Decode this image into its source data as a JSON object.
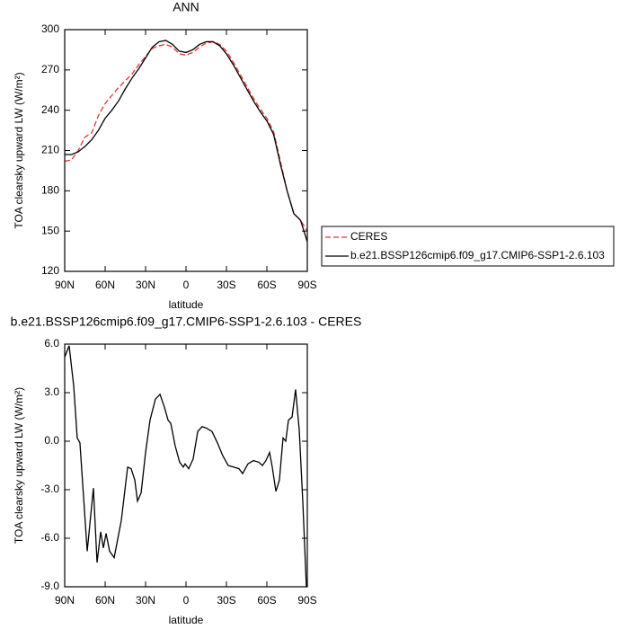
{
  "chart_data": [
    {
      "type": "line",
      "title": "ANN",
      "xlabel": "latitude",
      "ylabel": "TOA clearsky upward LW (W/m²)",
      "x": [
        90,
        85,
        80,
        75,
        70,
        65,
        60,
        55,
        50,
        45,
        40,
        35,
        30,
        25,
        20,
        15,
        10,
        5,
        0,
        -5,
        -10,
        -15,
        -20,
        -25,
        -30,
        -35,
        -40,
        -45,
        -50,
        -55,
        -60,
        -65,
        -70,
        -75,
        -80,
        -85,
        -90
      ],
      "series": [
        {
          "name": "CERES",
          "color": "#e8322c",
          "dashed": true,
          "values": [
            202,
            203,
            210,
            220,
            223,
            236,
            245,
            251,
            257,
            262,
            267,
            274,
            280,
            286,
            288,
            289,
            287,
            282,
            281,
            283,
            287,
            290,
            291,
            289,
            284,
            276,
            267,
            258,
            249,
            241,
            234,
            224,
            202,
            180,
            163,
            158,
            150
          ]
        },
        {
          "name": "b.e21.BSSP126cmip6.f09_g17.CMIP6-SSP1-2.6.103",
          "color": "#000000",
          "values": [
            207,
            207,
            209,
            213,
            218,
            225,
            234,
            240,
            247,
            256,
            264,
            271,
            279,
            287,
            291,
            292,
            289,
            284,
            283,
            285,
            289,
            291,
            291,
            288,
            282,
            274,
            265,
            256,
            247,
            239,
            232,
            222,
            200,
            180,
            163,
            158,
            142
          ]
        }
      ],
      "xlim": [
        90,
        -90
      ],
      "xticks": [
        {
          "value": 90,
          "label": "90N"
        },
        {
          "value": 60,
          "label": "60N"
        },
        {
          "value": 30,
          "label": "30N"
        },
        0,
        {
          "value": -30,
          "label": "30S"
        },
        {
          "value": -60,
          "label": "60S"
        },
        {
          "value": -90,
          "label": "90S"
        }
      ],
      "ylim": [
        120,
        300
      ],
      "yticks": [
        120,
        150,
        180,
        210,
        240,
        270,
        300
      ],
      "legend": "right"
    },
    {
      "type": "line",
      "title": "b.e21.BSSP126cmip6.f09_g17.CMIP6-SSP1-2.6.103 - CERES",
      "xlabel": "latitude",
      "ylabel": "TOA clearsky upward LW (W/m²)",
      "x": [
        90,
        86.7,
        83.3,
        80.7,
        78.7,
        73.3,
        68.7,
        66,
        63.3,
        61.3,
        59.3,
        56.7,
        53.3,
        48,
        43.3,
        40.7,
        38,
        36,
        33.3,
        30,
        26.7,
        22.7,
        19.3,
        16,
        13.3,
        11.3,
        8,
        4.7,
        2,
        0.7,
        -2,
        -5.3,
        -8.7,
        -12,
        -15.3,
        -19.3,
        -23.3,
        -27.3,
        -31.3,
        -35.3,
        -39.3,
        -42,
        -46,
        -50,
        -54,
        -56.7,
        -59.3,
        -62,
        -64,
        -66.7,
        -69.3,
        -72,
        -74,
        -76,
        -78.7,
        -81.3,
        -84,
        -86.7,
        -89.3
      ],
      "values": [
        5.2,
        5.9,
        3.4,
        0.2,
        -0.1,
        -6.8,
        -2.9,
        -7.5,
        -5.6,
        -6.6,
        -5.7,
        -6.8,
        -7.2,
        -4.9,
        -1.6,
        -1.7,
        -2.4,
        -3.7,
        -3.2,
        -0.7,
        1.3,
        2.6,
        2.9,
        2.1,
        1.3,
        1.1,
        -0.3,
        -1.3,
        -1.6,
        -1.4,
        -1.7,
        -1.1,
        0.6,
        0.9,
        0.8,
        0.6,
        -0.1,
        -0.9,
        -1.5,
        -1.6,
        -1.7,
        -2.0,
        -1.4,
        -1.2,
        -1.3,
        -1.5,
        -1.2,
        -0.7,
        -1.6,
        -3.1,
        -2.4,
        0.2,
        0.0,
        1.3,
        1.5,
        3.2,
        0.7,
        -3.8,
        -9.0
      ],
      "color": "#000000",
      "xlim": [
        90,
        -90
      ],
      "xticks": [
        {
          "value": 90,
          "label": "90N"
        },
        {
          "value": 60,
          "label": "60N"
        },
        {
          "value": 30,
          "label": "30N"
        },
        0,
        {
          "value": -30,
          "label": "30S"
        },
        {
          "value": -60,
          "label": "60S"
        },
        {
          "value": -90,
          "label": "90S"
        }
      ],
      "ylim": [
        -9,
        6
      ],
      "yticks": [
        {
          "value": -9,
          "label": "-9.0"
        },
        {
          "value": -6,
          "label": "-6.0"
        },
        {
          "value": -3,
          "label": "-3.0"
        },
        {
          "value": 0,
          "label": "0.0"
        },
        {
          "value": 3,
          "label": "3.0"
        },
        {
          "value": 6,
          "label": "6.0"
        }
      ]
    }
  ]
}
